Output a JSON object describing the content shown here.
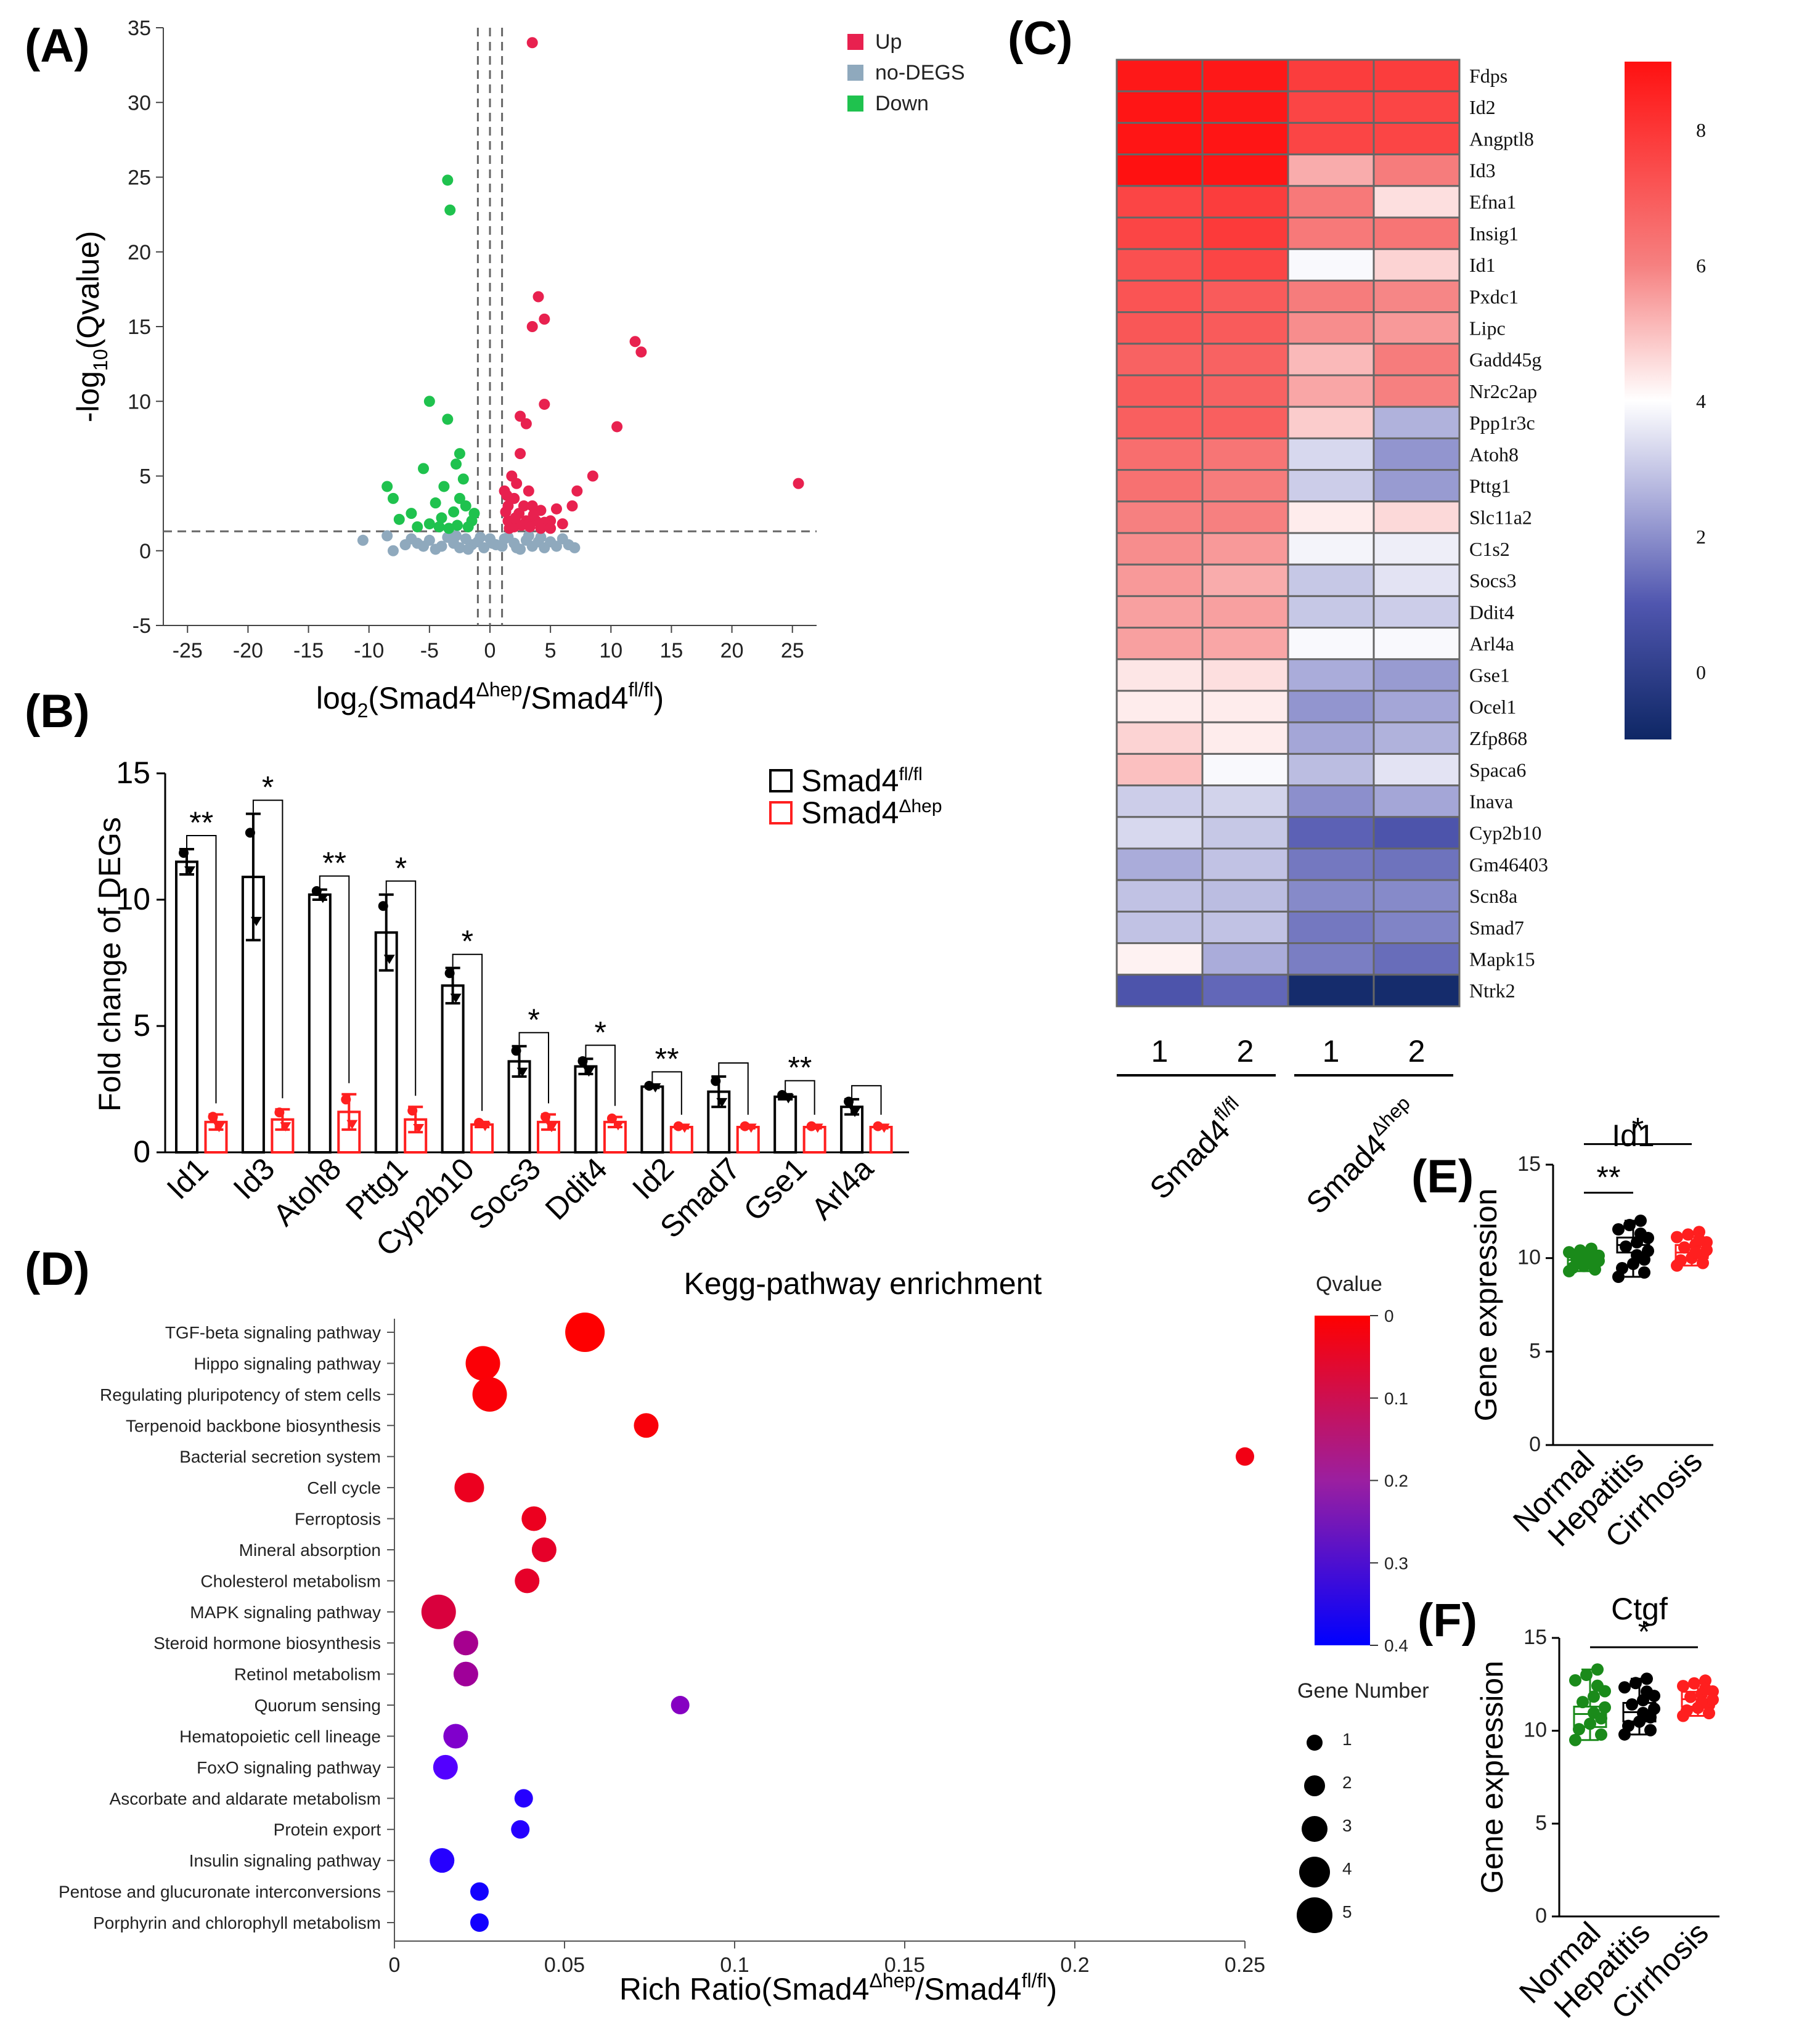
{
  "panels": {
    "a": "(A)",
    "b": "(B)",
    "c": "(C)",
    "d": "(D)",
    "e": "(E)",
    "f": "(F)"
  },
  "chart_data": [
    {
      "id": "A",
      "type": "scatter",
      "title": "",
      "xlabel_main": "log",
      "xlabel_sub": "2",
      "xlabel_rest": "(Smad4",
      "xlabel_sup1": "Δhep",
      "xlabel_mid": "/Smad4",
      "xlabel_sup2": "fl/fl",
      "xlabel_end": ")",
      "ylabel_main": "-log",
      "ylabel_sub": "10",
      "ylabel_rest": "(Qvalue)",
      "xlim": [
        -27,
        27
      ],
      "ylim": [
        -5,
        35
      ],
      "xticks": [
        -25,
        -20,
        -15,
        -10,
        -5,
        0,
        5,
        10,
        15,
        20,
        25
      ],
      "yticks": [
        -5,
        0,
        5,
        10,
        15,
        20,
        25,
        30,
        35
      ],
      "thresholds": {
        "x": [
          -1,
          0,
          1
        ],
        "y": 1.3
      },
      "legend": [
        {
          "label": "Up",
          "color": "#e8214f"
        },
        {
          "label": "no-DEGS",
          "color": "#8fa9bd"
        },
        {
          "label": "Down",
          "color": "#1fc24e"
        }
      ],
      "series": [
        {
          "name": "Up",
          "color": "#e8214f",
          "points": [
            [
              3.5,
              34
            ],
            [
              4,
              17
            ],
            [
              4.5,
              15.5
            ],
            [
              3.5,
              15
            ],
            [
              12,
              14
            ],
            [
              12.5,
              13.3
            ],
            [
              4.5,
              9.8
            ],
            [
              2.5,
              9
            ],
            [
              3,
              8.5
            ],
            [
              10.5,
              8.3
            ],
            [
              2.5,
              6.5
            ],
            [
              8.5,
              5
            ],
            [
              7.2,
              4
            ],
            [
              6.8,
              3
            ],
            [
              25.5,
              4.5
            ],
            [
              5.5,
              2.8
            ],
            [
              6,
              1.8
            ],
            [
              5,
              2
            ],
            [
              1.8,
              5
            ],
            [
              2.2,
              4.5
            ],
            [
              3.2,
              4
            ],
            [
              2,
              3.5
            ],
            [
              2.8,
              3
            ],
            [
              3.5,
              3
            ],
            [
              4.2,
              2.7
            ],
            [
              1.5,
              3
            ],
            [
              2.4,
              2.5
            ],
            [
              1.5,
              2
            ],
            [
              3,
              2
            ],
            [
              3.8,
              2
            ],
            [
              4.5,
              1.9
            ],
            [
              2,
              1.6
            ],
            [
              2.6,
              1.7
            ],
            [
              1.6,
              1.5
            ],
            [
              3.3,
              1.6
            ],
            [
              4.2,
              1.5
            ],
            [
              5,
              1.5
            ],
            [
              1.3,
              2.6
            ],
            [
              2.1,
              2.2
            ],
            [
              3.6,
              2.4
            ],
            [
              1.2,
              4
            ],
            [
              1.4,
              3.7
            ]
          ]
        },
        {
          "name": "Down",
          "color": "#1fc24e",
          "points": [
            [
              -3.5,
              24.8
            ],
            [
              -3.3,
              22.8
            ],
            [
              -5,
              10
            ],
            [
              -3.5,
              8.8
            ],
            [
              -2.5,
              6.5
            ],
            [
              -2.8,
              5.8
            ],
            [
              -5.5,
              5.5
            ],
            [
              -8.5,
              4.3
            ],
            [
              -8,
              3.5
            ],
            [
              -2.2,
              4.8
            ],
            [
              -3.8,
              4.3
            ],
            [
              -4.5,
              3.2
            ],
            [
              -2.5,
              3.5
            ],
            [
              -6.5,
              2.5
            ],
            [
              -7.5,
              2.1
            ],
            [
              -2,
              3
            ],
            [
              -3,
              2.6
            ],
            [
              -4,
              2.2
            ],
            [
              -1.5,
              2
            ],
            [
              -5,
              1.8
            ],
            [
              -2.7,
              1.7
            ],
            [
              -1.8,
              1.6
            ],
            [
              -3.4,
              1.5
            ],
            [
              -6,
              1.6
            ],
            [
              -1.3,
              2.5
            ],
            [
              -4.2,
              1.6
            ]
          ]
        },
        {
          "name": "no-DEGS",
          "color": "#8fa9bd",
          "points": [
            [
              -10.5,
              0.7
            ],
            [
              -8.5,
              1
            ],
            [
              -8,
              0
            ],
            [
              -6,
              0.5
            ],
            [
              -5,
              0.7
            ],
            [
              -4,
              0.3
            ],
            [
              -3.5,
              0.9
            ],
            [
              -3,
              0.5
            ],
            [
              -2.5,
              0.2
            ],
            [
              -2,
              0.8
            ],
            [
              -1.5,
              0.4
            ],
            [
              -1,
              0.6
            ],
            [
              -0.5,
              0.2
            ],
            [
              0,
              0.8
            ],
            [
              0.5,
              0.4
            ],
            [
              1,
              0.3
            ],
            [
              1.5,
              0.9
            ],
            [
              2,
              0.5
            ],
            [
              2.5,
              0.1
            ],
            [
              3,
              0.7
            ],
            [
              3.5,
              0.3
            ],
            [
              4,
              0.6
            ],
            [
              4.5,
              0.2
            ],
            [
              5,
              0.6
            ],
            [
              5.5,
              0.3
            ],
            [
              6,
              0.8
            ],
            [
              -4.5,
              0.1
            ],
            [
              -5.5,
              0.3
            ],
            [
              -7,
              0.4
            ],
            [
              -6.5,
              0.8
            ],
            [
              -2.8,
              1
            ],
            [
              -1.8,
              0.1
            ],
            [
              -0.8,
              0.9
            ],
            [
              0.2,
              0.5
            ],
            [
              1.2,
              0.8
            ],
            [
              2.2,
              0.2
            ],
            [
              3.2,
              1
            ],
            [
              4.2,
              0.9
            ],
            [
              6.5,
              0.4
            ],
            [
              7,
              0.2
            ]
          ]
        }
      ]
    },
    {
      "id": "B",
      "type": "bar",
      "ylabel": "Fold change of DEGs",
      "ylim": [
        0,
        15
      ],
      "yticks": [
        0,
        5,
        10,
        15
      ],
      "categories": [
        "Id1",
        "Id3",
        "Atoh8",
        "Pttg1",
        "Cyp2b10",
        "Socs3",
        "Ddit4",
        "Id2",
        "Smad7",
        "Gse1",
        "Arl4a"
      ],
      "series": [
        {
          "name": "Smad4 fl/fl",
          "label_main": "Smad4",
          "label_sup": "fl/fl",
          "color": "#000000",
          "values": [
            11.5,
            10.9,
            10.2,
            8.7,
            6.6,
            3.6,
            3.4,
            2.6,
            2.4,
            2.2,
            1.8
          ],
          "errors": [
            0.5,
            2.5,
            0.2,
            1.5,
            0.7,
            0.6,
            0.3,
            0.05,
            0.6,
            0.1,
            0.3
          ]
        },
        {
          "name": "Smad4 Δhep",
          "label_main": "Smad4",
          "label_sup": "Δhep",
          "color": "#ff1f1f",
          "values": [
            1.2,
            1.3,
            1.6,
            1.3,
            1.1,
            1.2,
            1.2,
            1.0,
            1.0,
            1.0,
            1.0
          ],
          "errors": [
            0.3,
            0.4,
            0.7,
            0.5,
            0.1,
            0.3,
            0.2,
            0.05,
            0.05,
            0.05,
            0.05
          ]
        }
      ],
      "significance": [
        "**",
        "*",
        "**",
        "*",
        "*",
        "*",
        "*",
        "**",
        "",
        "**",
        ""
      ]
    },
    {
      "id": "C",
      "type": "heatmap",
      "genes": [
        "Fdps",
        "Id2",
        "Angptl8",
        "Id3",
        "Efna1",
        "Insig1",
        "Id1",
        "Pxdc1",
        "Lipc",
        "Gadd45g",
        "Nr2c2ap",
        "Ppp1r3c",
        "Atoh8",
        "Pttg1",
        "Slc11a2",
        "C1s2",
        "Socs3",
        "Ddit4",
        "Arl4a",
        "Gse1",
        "Ocel1",
        "Zfp868",
        "Spaca6",
        "Inava",
        "Cyp2b10",
        "Gm46403",
        "Scn8a",
        "Smad7",
        "Mapk15",
        "Ntrk2"
      ],
      "columns": [
        "1",
        "2",
        "1",
        "2"
      ],
      "groups": [
        {
          "main": "Smad4",
          "sup": "fl/fl"
        },
        {
          "main": "Smad4",
          "sup": "Δhep"
        }
      ],
      "values": [
        [
          8.8,
          8.8,
          7.8,
          7.8
        ],
        [
          8.9,
          8.8,
          7.6,
          7.6
        ],
        [
          8.9,
          8.9,
          7.6,
          7.6
        ],
        [
          9.1,
          8.9,
          5.3,
          6.1
        ],
        [
          7.6,
          7.8,
          6.2,
          4.5
        ],
        [
          7.6,
          7.9,
          6.2,
          6.3
        ],
        [
          7.3,
          7.6,
          3.9,
          4.7
        ],
        [
          7.2,
          7.0,
          6.1,
          5.9
        ],
        [
          7.1,
          7.0,
          5.8,
          5.6
        ],
        [
          6.8,
          6.8,
          5.1,
          6.1
        ],
        [
          7.0,
          6.8,
          5.4,
          6.0
        ],
        [
          6.9,
          6.9,
          4.8,
          2.6
        ],
        [
          6.5,
          6.3,
          3.3,
          2.1
        ],
        [
          6.4,
          6.1,
          3.1,
          2.2
        ],
        [
          6.0,
          6.0,
          4.3,
          4.6
        ],
        [
          5.8,
          5.6,
          3.8,
          3.7
        ],
        [
          5.6,
          5.3,
          3.0,
          3.5
        ],
        [
          5.5,
          5.5,
          3.0,
          3.1
        ],
        [
          5.5,
          5.4,
          3.9,
          3.9
        ],
        [
          4.4,
          4.5,
          2.5,
          2.2
        ],
        [
          4.3,
          4.3,
          2.1,
          2.4
        ],
        [
          4.7,
          4.3,
          2.4,
          2.6
        ],
        [
          5.0,
          3.9,
          2.8,
          3.5
        ],
        [
          3.1,
          3.2,
          2.0,
          2.4
        ],
        [
          3.3,
          3.0,
          1.2,
          0.9
        ],
        [
          2.5,
          2.9,
          1.6,
          1.5
        ],
        [
          2.9,
          2.8,
          1.9,
          1.9
        ],
        [
          2.9,
          2.9,
          1.6,
          1.8
        ],
        [
          4.2,
          2.5,
          1.7,
          1.4
        ],
        [
          0.9,
          1.3,
          -0.8,
          -0.8
        ]
      ],
      "colorbar": {
        "min": -1,
        "max": 9,
        "ticks": [
          0,
          2,
          4,
          6,
          8
        ]
      }
    },
    {
      "id": "D",
      "type": "scatter",
      "title": "Kegg-pathway enrichment",
      "xlabel_main": "Rich Ratio(Smad4",
      "xlabel_sup1": "Δhep",
      "xlabel_mid": "/Smad4",
      "xlabel_sup2": "fl/fl",
      "xlabel_end": ")",
      "xlim": [
        0,
        0.25
      ],
      "xticks": [
        0,
        0.05,
        0.1,
        0.15,
        0.2,
        0.25
      ],
      "pathways": [
        "TGF-beta signaling pathway",
        "Hippo signaling pathway",
        "Regulating pluripotency of stem cells",
        "Terpenoid backbone biosynthesis",
        "Bacterial secretion system",
        "Cell cycle",
        "Ferroptosis",
        "Mineral absorption",
        "Cholesterol metabolism",
        "MAPK signaling pathway",
        "Steroid hormone biosynthesis",
        "Retinol metabolism",
        "Quorum sensing",
        "Hematopoietic cell lineage",
        "FoxO signaling pathway",
        "Ascorbate and aldarate metabolism",
        "Protein export",
        "Insulin signaling pathway",
        "Pentose and glucuronate interconversions",
        "Porphyrin and chlorophyll metabolism"
      ],
      "rich_ratio": [
        0.056,
        0.026,
        0.028,
        0.074,
        0.25,
        0.022,
        0.041,
        0.044,
        0.039,
        0.013,
        0.021,
        0.021,
        0.084,
        0.018,
        0.015,
        0.038,
        0.037,
        0.014,
        0.025,
        0.025
      ],
      "qvalue": [
        0.001,
        0.006,
        0.008,
        0.01,
        0.02,
        0.03,
        0.03,
        0.04,
        0.04,
        0.06,
        0.14,
        0.15,
        0.19,
        0.2,
        0.27,
        0.34,
        0.34,
        0.34,
        0.37,
        0.37
      ],
      "gene_number": [
        5,
        4,
        4,
        2,
        1,
        3,
        2,
        2,
        2,
        4,
        2,
        2,
        1,
        2,
        2,
        1,
        1,
        2,
        1,
        1
      ],
      "qvalue_legend": {
        "title": "Qvalue",
        "ticks": [
          "0",
          "0.1",
          "0.2",
          "0.3",
          "0.4"
        ]
      },
      "size_legend": {
        "title": "Gene Number",
        "labels": [
          "1",
          "2",
          "3",
          "4",
          "5"
        ]
      }
    },
    {
      "id": "E",
      "type": "box",
      "title": "Id1",
      "ylabel": "Gene expression",
      "ylim": [
        0,
        15
      ],
      "yticks": [
        0,
        5,
        10,
        15
      ],
      "categories": [
        "Normal",
        "Hepatitis",
        "Cirrhosis"
      ],
      "colors": [
        "#1a8a1a",
        "#000000",
        "#ff1f1f"
      ],
      "boxes": [
        {
          "min": 9.3,
          "q1": 9.6,
          "median": 9.9,
          "q3": 10.2,
          "max": 10.5
        },
        {
          "min": 9.0,
          "q1": 10.3,
          "median": 10.7,
          "q3": 11.1,
          "max": 12.0
        },
        {
          "min": 9.6,
          "q1": 10.0,
          "median": 10.3,
          "q3": 10.7,
          "max": 11.4
        }
      ],
      "significance": [
        {
          "from": 0,
          "to": 1,
          "label": "**"
        },
        {
          "from": 0,
          "to": 2,
          "label": "*"
        }
      ]
    },
    {
      "id": "F",
      "type": "box",
      "title": "Ctgf",
      "ylabel": "Gene expression",
      "ylim": [
        0,
        15
      ],
      "yticks": [
        0,
        5,
        10,
        15
      ],
      "categories": [
        "Normal",
        "Hepatitis",
        "Cirrhosis"
      ],
      "colors": [
        "#1a8a1a",
        "#000000",
        "#ff1f1f"
      ],
      "boxes": [
        {
          "min": 9.5,
          "q1": 10.2,
          "median": 10.9,
          "q3": 11.3,
          "max": 13.3
        },
        {
          "min": 9.8,
          "q1": 10.5,
          "median": 11.0,
          "q3": 11.5,
          "max": 12.8
        },
        {
          "min": 10.8,
          "q1": 11.3,
          "median": 11.7,
          "q3": 12.1,
          "max": 12.7
        }
      ],
      "significance": [
        {
          "from": 0,
          "to": 2,
          "label": "*"
        }
      ]
    }
  ]
}
